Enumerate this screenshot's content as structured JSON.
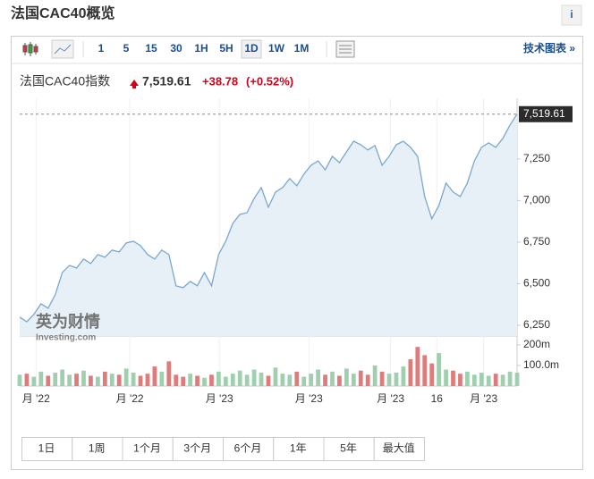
{
  "header": {
    "title": "法国CAC40概览",
    "info": "i"
  },
  "toolbar": {
    "intervals": [
      "1",
      "5",
      "15",
      "30",
      "1H",
      "5H",
      "1D",
      "1W",
      "1M"
    ],
    "selected_index": 6,
    "link": "技术图表 »"
  },
  "quote": {
    "name": "法国CAC40指数",
    "price": "7,519.61",
    "change": "+38.78",
    "change_pct": "(+0.52%)"
  },
  "chart_data": {
    "type": "area",
    "x": [
      0,
      1,
      2,
      3,
      4,
      5,
      6,
      7,
      8,
      9,
      10,
      11,
      12,
      13,
      14,
      15,
      16,
      17,
      18,
      19,
      20,
      21,
      22,
      23,
      24,
      25,
      26,
      27,
      28,
      29,
      30,
      31,
      32,
      33,
      34,
      35,
      36,
      37,
      38,
      39,
      40,
      41,
      42,
      43,
      44,
      45,
      46,
      47,
      48,
      49,
      50,
      51,
      52,
      53,
      54,
      55,
      56,
      57,
      58,
      59,
      60,
      61,
      62,
      63,
      64,
      65,
      66,
      67,
      68,
      69,
      70
    ],
    "values": [
      6298,
      6271,
      6315,
      6379,
      6352,
      6433,
      6567,
      6610,
      6594,
      6648,
      6621,
      6675,
      6659,
      6702,
      6691,
      6745,
      6755,
      6729,
      6675,
      6648,
      6702,
      6675,
      6487,
      6476,
      6513,
      6487,
      6567,
      6487,
      6675,
      6755,
      6863,
      6917,
      6927,
      7013,
      7078,
      6960,
      7051,
      7078,
      7132,
      7089,
      7159,
      7212,
      7239,
      7185,
      7266,
      7228,
      7293,
      7357,
      7336,
      7304,
      7331,
      7212,
      7266,
      7336,
      7357,
      7320,
      7266,
      7024,
      6890,
      6970,
      7105,
      7051,
      7024,
      7105,
      7239,
      7320,
      7347,
      7320,
      7374,
      7454,
      7519.61
    ],
    "color": "#7aa7cf",
    "fill": "#e8f0f7",
    "volume": {
      "axis": "y2",
      "up_color": "#9fcfae",
      "down_color": "#e07b7b",
      "values": [
        55,
        60,
        45,
        70,
        50,
        65,
        80,
        55,
        60,
        75,
        50,
        45,
        70,
        60,
        55,
        85,
        65,
        50,
        60,
        95,
        70,
        120,
        55,
        45,
        60,
        50,
        40,
        55,
        70,
        45,
        60,
        75,
        55,
        80,
        65,
        50,
        90,
        60,
        55,
        70,
        45,
        60,
        80,
        55,
        70,
        50,
        85,
        60,
        75,
        55,
        100,
        70,
        60,
        65,
        95,
        130,
        190,
        150,
        110,
        160,
        80,
        75,
        60,
        70,
        55,
        65,
        50,
        60,
        55,
        70,
        65
      ]
    },
    "xlim": [
      0,
      70
    ],
    "xticks": [
      {
        "value": 2.3,
        "label": "月 '22"
      },
      {
        "value": 15.5,
        "label": "月 '22"
      },
      {
        "value": 28.1,
        "label": "月 '23"
      },
      {
        "value": 40.7,
        "label": "月 '23"
      },
      {
        "value": 52.2,
        "label": "月 '23"
      },
      {
        "value": 58.7,
        "label": "16"
      },
      {
        "value": 65.3,
        "label": "月 '23"
      }
    ],
    "ylim": [
      6185,
      7572
    ],
    "yticks": [
      {
        "value": 6250,
        "label": "6,250"
      },
      {
        "value": 6500,
        "label": "6,500"
      },
      {
        "value": 6750,
        "label": "6,750"
      },
      {
        "value": 7000,
        "label": "7,000"
      },
      {
        "value": 7250,
        "label": "7,250"
      }
    ],
    "y2lim": [
      0,
      243
    ],
    "y2ticks": [
      {
        "value": 100,
        "label": "100.0m"
      },
      {
        "value": 200,
        "label": "200m"
      }
    ],
    "current": {
      "value": 7519.61,
      "label": "7,519.61"
    },
    "grid": true,
    "watermark": {
      "cn": "英为财情",
      "en": "Investing.com"
    }
  },
  "ranges": [
    "1日",
    "1周",
    "1个月",
    "3个月",
    "6个月",
    "1年",
    "5年",
    "最大值"
  ]
}
